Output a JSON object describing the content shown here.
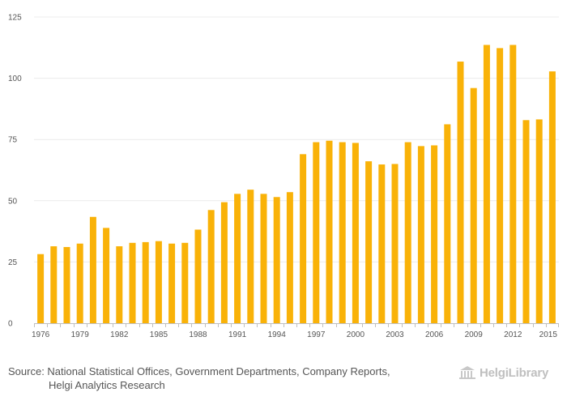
{
  "chart_data": {
    "type": "bar",
    "title": "",
    "xlabel": "",
    "ylabel": "",
    "ylim": [
      0,
      125
    ],
    "yticks": [
      0,
      25,
      50,
      75,
      100,
      125
    ],
    "x_tick_labels": [
      "1976",
      "1979",
      "1982",
      "1985",
      "1988",
      "1991",
      "1994",
      "1997",
      "2000",
      "2003",
      "2006",
      "2009",
      "2012",
      "2015"
    ],
    "categories": [
      "1976",
      "1977",
      "1978",
      "1979",
      "1980",
      "1981",
      "1982",
      "1983",
      "1984",
      "1985",
      "1986",
      "1987",
      "1988",
      "1989",
      "1990",
      "1991",
      "1992",
      "1993",
      "1994",
      "1995",
      "1996",
      "1997",
      "1998",
      "1999",
      "2000",
      "2001",
      "2002",
      "2003",
      "2004",
      "2005",
      "2006",
      "2007",
      "2008",
      "2009",
      "2010",
      "2011",
      "2012",
      "2013",
      "2014",
      "2015"
    ],
    "values": [
      28.2,
      31.4,
      31.1,
      32.5,
      43.4,
      38.9,
      31.4,
      32.8,
      33.1,
      33.5,
      32.5,
      32.8,
      38.2,
      46.2,
      49.4,
      52.8,
      54.5,
      52.8,
      51.5,
      53.5,
      69.0,
      73.9,
      74.5,
      73.9,
      73.6,
      66.1,
      64.8,
      65.0,
      73.9,
      72.3,
      72.6,
      81.2,
      106.8,
      96.0,
      113.6,
      112.3,
      113.6,
      82.9,
      83.2,
      102.8
    ],
    "bar_color": "#f9b208",
    "grid": true
  },
  "footer": {
    "source_line1": "Source: National Statistical Offices, Government Departments, Company Reports,",
    "source_line2": "Helgi Analytics Research",
    "logo_text": "HelgiLibrary"
  }
}
